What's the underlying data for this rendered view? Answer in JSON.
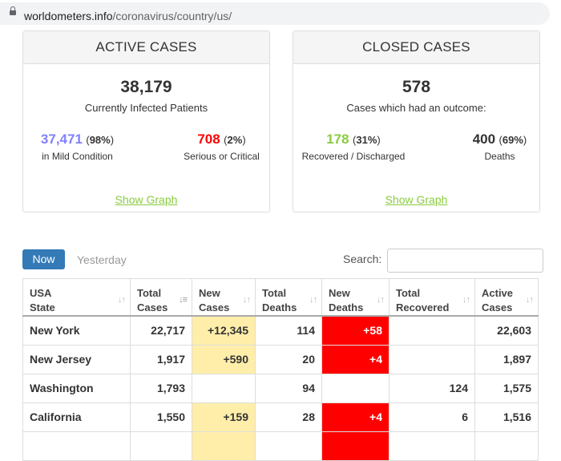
{
  "browser": {
    "url_domain": "worldometers.info",
    "url_path": "/coronavirus/country/us/"
  },
  "active_cases": {
    "title": "ACTIVE CASES",
    "total": "38,179",
    "total_label": "Currently Infected Patients",
    "mild_value": "37,471",
    "mild_pct": "98%",
    "mild_label": "in Mild Condition",
    "serious_value": "708",
    "serious_pct": "2%",
    "serious_label": "Serious or Critical",
    "show_graph": "Show Graph"
  },
  "closed_cases": {
    "title": "CLOSED CASES",
    "total": "578",
    "total_label": "Cases which had an outcome:",
    "recovered_value": "178",
    "recovered_pct": "31%",
    "recovered_label": "Recovered / Discharged",
    "deaths_value": "400",
    "deaths_pct": "69%",
    "deaths_label": "Deaths",
    "show_graph": "Show Graph"
  },
  "controls": {
    "now_label": "Now",
    "yesterday_label": "Yesterday",
    "search_label": "Search:",
    "search_value": ""
  },
  "table": {
    "headers": [
      [
        "USA",
        "State"
      ],
      [
        "Total",
        "Cases"
      ],
      [
        "New",
        "Cases"
      ],
      [
        "Total",
        "Deaths"
      ],
      [
        "New",
        "Deaths"
      ],
      [
        "Total",
        "Recovered"
      ],
      [
        "Active",
        "Cases"
      ]
    ],
    "rows": [
      [
        "New York",
        "22,717",
        "+12,345",
        "114",
        "+58",
        "",
        "22,603"
      ],
      [
        "New Jersey",
        "1,917",
        "+590",
        "20",
        "+4",
        "",
        "1,897"
      ],
      [
        "Washington",
        "1,793",
        "",
        "94",
        "",
        "124",
        "1,575"
      ],
      [
        "California",
        "1,550",
        "+159",
        "28",
        "+4",
        "6",
        "1,516"
      ]
    ]
  },
  "colors": {
    "mild": "#8080ff",
    "serious": "#ff0000",
    "recovered": "#8acb3e",
    "now_button": "#337ab7",
    "new_cases_bg": "#ffeeaa",
    "new_deaths_bg": "#ff0000"
  }
}
